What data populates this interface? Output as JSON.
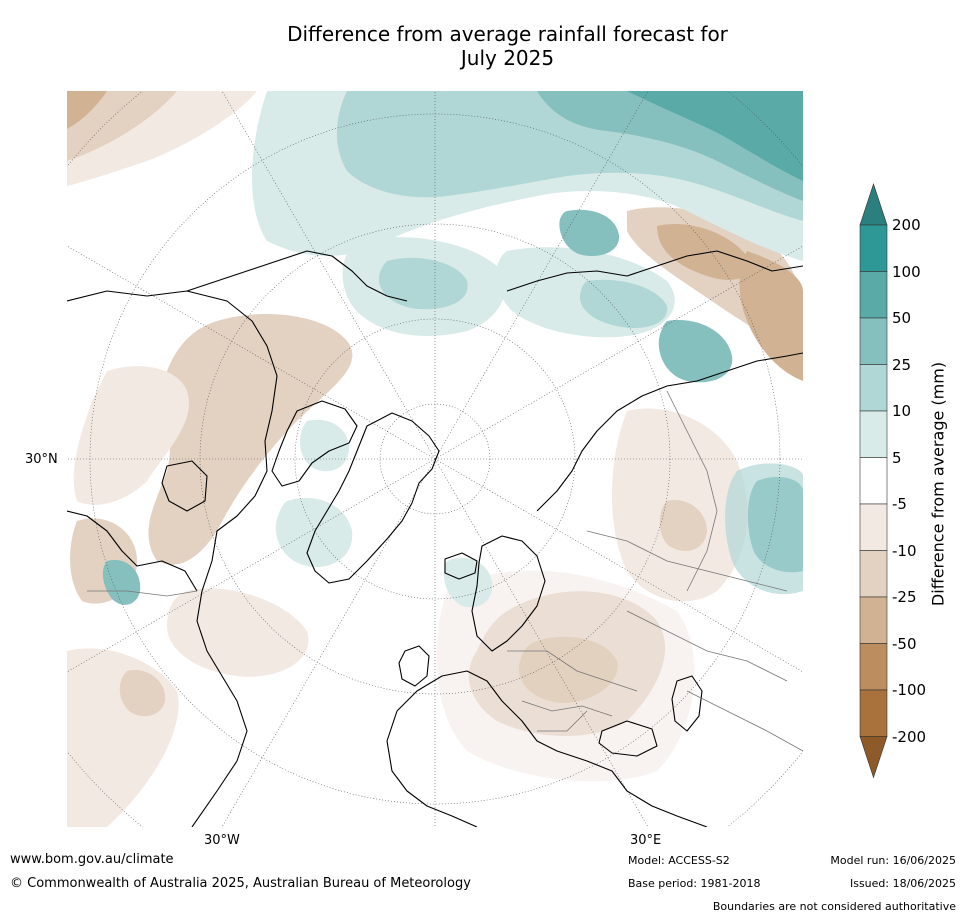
{
  "title_line1": "Difference from average rainfall forecast for",
  "title_line2": "July 2025",
  "colorbar": {
    "label": "Difference from average (mm)",
    "levels": [
      "200",
      "100",
      "50",
      "25",
      "10",
      "5",
      "-5",
      "-10",
      "-25",
      "-50",
      "-100",
      "-200"
    ],
    "colors": [
      "#2c7f7f",
      "#2e9896",
      "#5aaaa8",
      "#85c0be",
      "#b0d7d5",
      "#d8ebe9",
      "#ffffff",
      "#f3e9e3",
      "#e3d1c1",
      "#d1b394",
      "#bb8d5f",
      "#a9713c",
      "#8e5a27"
    ]
  },
  "map": {
    "lat_label": "30°N",
    "lon_labels": [
      "30°W",
      "30°E"
    ],
    "projection": "north polar stereographic",
    "colors": {
      "wet_light": "#d8ebe9",
      "wet_mid": "#b0d7d5",
      "wet_strong": "#85c0be",
      "wet_heavy": "#5aaaa8",
      "dry_light": "#f3e9e3",
      "dry_mid": "#e3d1c1",
      "dry_strong": "#d1b394",
      "coast": "#000000",
      "border": "#777777"
    }
  },
  "footer": {
    "website": "www.bom.gov.au/climate",
    "copyright": "© Commonwealth of Australia 2025, Australian Bureau of Meteorology",
    "model": "Model: ACCESS-S2",
    "base_period": "Base period: 1981-2018",
    "model_run": "Model run: 16/06/2025",
    "issued": "Issued: 18/06/2025",
    "disclaimer": "Boundaries are not considered authoritative"
  }
}
